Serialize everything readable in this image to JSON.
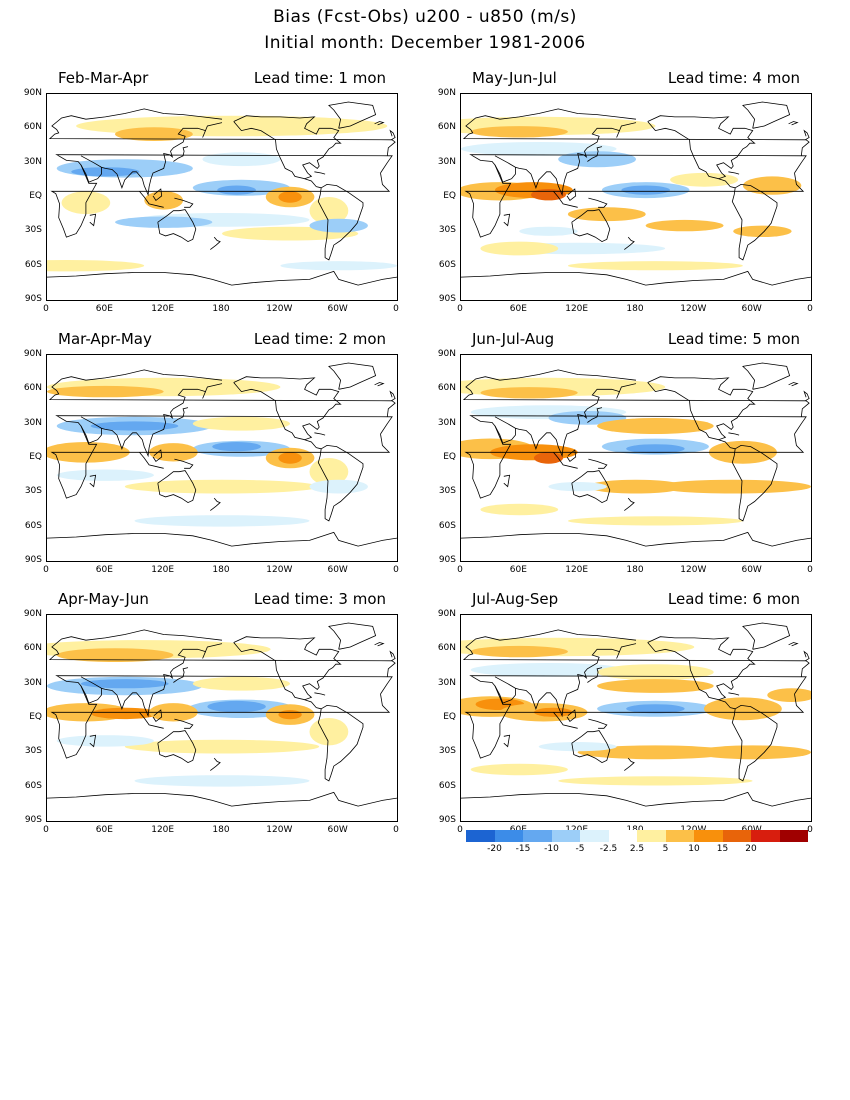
{
  "title": {
    "line1": "Bias (Fcst-Obs)    u200 - u850 (m/s)",
    "line2": "Initial month: December 1981-2006"
  },
  "lat_labels": [
    "90N",
    "60N",
    "30N",
    "EQ",
    "30S",
    "60S",
    "90S"
  ],
  "lon_labels": [
    "0",
    "60E",
    "120E",
    "180",
    "120W",
    "60W",
    "0"
  ],
  "panels": [
    {
      "season": "Feb-Mar-Apr",
      "lead": "Lead time: 1 mon"
    },
    {
      "season": "May-Jun-Jul",
      "lead": "Lead time: 4 mon"
    },
    {
      "season": "Mar-Apr-May",
      "lead": "Lead time: 2 mon"
    },
    {
      "season": "Jun-Jul-Aug",
      "lead": "Lead time: 5 mon"
    },
    {
      "season": "Apr-May-Jun",
      "lead": "Lead time: 3 mon"
    },
    {
      "season": "Jul-Aug-Sep",
      "lead": "Lead time: 6 mon"
    }
  ],
  "colorbar": {
    "labels": [
      "-20",
      "-15",
      "-10",
      "-5",
      "-2.5",
      "2.5",
      "5",
      "10",
      "15",
      "20"
    ],
    "colors": [
      "#1c64d2",
      "#3c8ce8",
      "#64a8f0",
      "#9ccef8",
      "#dcf2fc",
      "#ffffff",
      "#fff0a0",
      "#fcc048",
      "#f8900c",
      "#e8640a",
      "#d81e0e",
      "#a00000"
    ]
  },
  "palette": {
    "neg_strong": "#3c8ce8",
    "neg_mid": "#64a8f0",
    "neg_weak": "#9ccef8",
    "neg_faint": "#dcf2fc",
    "pos_faint": "#fff0a0",
    "pos_weak": "#fcc048",
    "pos_mid": "#f8900c",
    "pos_strong": "#e8640a"
  }
}
